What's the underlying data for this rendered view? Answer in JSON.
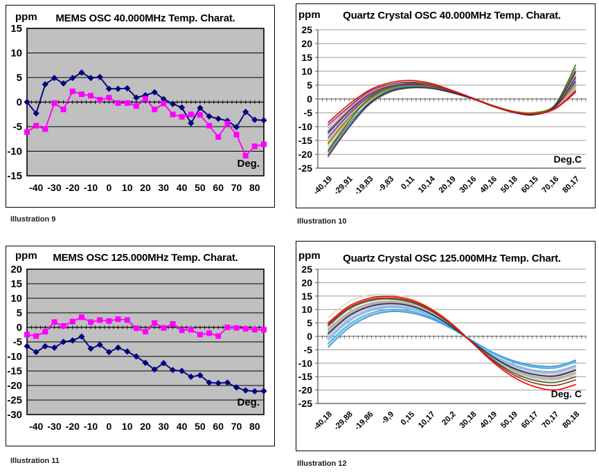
{
  "chart_data": [
    {
      "type": "line",
      "title": "MEMS OSC 40.000MHz Temp. Charat.",
      "y_unit": "ppm",
      "x_unit": "Deg.",
      "caption": "Illustration 9",
      "plot_background": "#C0C0C0",
      "grid": true,
      "ylim": [
        -15,
        15
      ],
      "ystep": 5,
      "x_range": [
        -45,
        85
      ],
      "x_tick_labels": [
        "-40",
        "-30",
        "-20",
        "-10",
        "0",
        "10",
        "20",
        "30",
        "40",
        "50",
        "60",
        "70",
        "80"
      ],
      "series": [
        {
          "marker": "diamond",
          "color": "#000080",
          "x_start": -45,
          "x_step": 5,
          "values": [
            0.0,
            -2.3,
            3.6,
            4.9,
            3.8,
            4.9,
            6.0,
            4.9,
            5.1,
            2.7,
            2.7,
            2.8,
            0.9,
            1.4,
            2.0,
            0.6,
            -0.4,
            -1.1,
            -4.3,
            -1.2,
            -2.9,
            -3.4,
            -3.8,
            -5.1,
            -2.0,
            -3.6,
            -3.7
          ]
        },
        {
          "marker": "square",
          "color": "#FF00FF",
          "x_start": -45,
          "x_step": 5,
          "values": [
            -6.1,
            -4.8,
            -5.5,
            -0.2,
            -1.5,
            2.2,
            1.6,
            1.3,
            0.5,
            0.9,
            -0.2,
            -0.2,
            -0.8,
            0.7,
            -1.5,
            -0.3,
            -2.5,
            -3.0,
            -2.5,
            -2.6,
            -4.8,
            -7.1,
            -4.4,
            -6.6,
            -10.9,
            -9.0,
            -8.6
          ]
        }
      ]
    },
    {
      "type": "line",
      "title": "Quartz Crystal OSC 40.000MHz Temp. Charat.",
      "y_unit": "ppm",
      "x_unit": "Deg.C",
      "caption": "Illustration 10",
      "plot_background": "#FFFFFF",
      "grid": true,
      "ylim": [
        -25,
        25
      ],
      "ystep": 5,
      "x_categories": [
        "-40,19",
        "-29,91",
        "-19,83",
        "-9,83",
        "0,11",
        "10,14",
        "20,19",
        "30,16",
        "40,16",
        "50,18",
        "60,15",
        "70,16",
        "80,17"
      ],
      "curves": [
        {
          "color": "#B9CDE5",
          "values": [
            -13.1,
            -5.0,
            1.2,
            4.3,
            5.2,
            4.6,
            2.6,
            0.1,
            -2.5,
            -4.6,
            -5.1,
            -3.0,
            6.9
          ]
        },
        {
          "color": "#CCC1DA",
          "values": [
            -15.4,
            -6.4,
            0.1,
            3.9,
            4.9,
            4.4,
            2.5,
            0.0,
            -2.4,
            -4.5,
            -4.9,
            -2.8,
            5.4
          ]
        },
        {
          "color": "#DDC9A3",
          "values": [
            -17.4,
            -7.6,
            -0.7,
            3.4,
            4.6,
            4.2,
            2.4,
            0.0,
            -2.4,
            -4.4,
            -4.8,
            -2.6,
            4.4
          ]
        },
        {
          "color": "#E6B9B8",
          "values": [
            -19.9,
            -9.6,
            -1.6,
            2.9,
            4.2,
            3.9,
            2.2,
            0.0,
            -2.5,
            -4.8,
            -5.6,
            -2.7,
            9.3
          ]
        },
        {
          "color": "#FAC090",
          "values": [
            -14.8,
            -6.0,
            0.5,
            4.0,
            5.0,
            4.4,
            2.5,
            0.1,
            -2.5,
            -4.5,
            -5.0,
            -2.8,
            5.9
          ]
        },
        {
          "color": "#A6A6A6",
          "values": [
            -11.4,
            -4.0,
            1.9,
            4.7,
            5.4,
            4.7,
            2.7,
            0.1,
            -2.6,
            -4.7,
            -5.2,
            -3.2,
            3.4
          ]
        },
        {
          "color": "#D99694",
          "values": [
            -21.0,
            -10.6,
            -2.1,
            2.4,
            3.9,
            3.7,
            2.2,
            0.0,
            -2.6,
            -4.8,
            -5.5,
            -2.9,
            8.9
          ]
        },
        {
          "color": "#E5A0BE",
          "values": [
            -10.4,
            -3.4,
            2.2,
            4.9,
            5.7,
            4.9,
            2.8,
            0.2,
            -2.6,
            -4.8,
            -5.3,
            -3.3,
            3.9
          ]
        },
        {
          "color": "#558ED5",
          "values": [
            -12.6,
            -4.7,
            1.4,
            4.5,
            5.3,
            4.6,
            2.6,
            0.1,
            -2.5,
            -4.6,
            -5.1,
            -3.0,
            7.4
          ]
        },
        {
          "color": "#BF9000",
          "values": [
            -16.3,
            -7.1,
            -0.4,
            3.6,
            4.8,
            4.3,
            2.5,
            0.1,
            -2.4,
            -4.5,
            -5.0,
            -2.7,
            4.9
          ]
        },
        {
          "color": "#7030A0",
          "values": [
            -14.0,
            -5.6,
            0.9,
            4.1,
            5.1,
            4.5,
            2.6,
            0.2,
            -2.5,
            -4.6,
            -5.1,
            -2.9,
            6.4
          ]
        },
        {
          "color": "#604A7B",
          "values": [
            -9.4,
            -2.9,
            2.7,
            5.3,
            6.1,
            5.2,
            2.9,
            0.2,
            -2.7,
            -4.8,
            -5.4,
            -3.5,
            2.9
          ]
        },
        {
          "color": "#31849B",
          "values": [
            -19.2,
            -9.1,
            -1.3,
            3.1,
            4.4,
            4.0,
            2.3,
            0.1,
            -2.5,
            -4.7,
            -5.3,
            -2.5,
            5.9
          ]
        },
        {
          "color": "#77933C",
          "values": [
            -15.9,
            -6.9,
            -0.1,
            3.7,
            4.7,
            4.3,
            2.4,
            0.1,
            -2.4,
            -4.5,
            -5.0,
            -2.3,
            10.9
          ]
        },
        {
          "color": "#8B2E2E",
          "values": [
            -12.0,
            -4.4,
            1.7,
            4.6,
            5.5,
            4.7,
            2.7,
            0.2,
            -2.6,
            -4.7,
            -5.3,
            -3.1,
            7.9
          ]
        },
        {
          "color": "#1F3864",
          "values": [
            -20.5,
            -10.2,
            -1.8,
            2.7,
            4.1,
            3.9,
            2.3,
            0.1,
            -2.6,
            -4.9,
            -5.7,
            -2.6,
            9.8
          ]
        },
        {
          "color": "#4E6B22",
          "values": [
            -18.5,
            -8.2,
            0.2,
            4.3,
            5.7,
            5.3,
            3.1,
            0.4,
            -2.4,
            -4.6,
            -5.2,
            -2.1,
            12.2
          ]
        },
        {
          "color": "#FF0000",
          "values": [
            -8.5,
            -2.0,
            3.2,
            5.9,
            6.7,
            5.6,
            3.1,
            0.3,
            -2.6,
            -4.7,
            -5.4,
            -3.6,
            2.4
          ]
        }
      ]
    },
    {
      "type": "line",
      "title": "MEMS OSC 125.000MHz Temp. Charat.",
      "y_unit": "ppm",
      "x_unit": "Deg.",
      "caption": "Illustration 11",
      "plot_background": "#C0C0C0",
      "grid": true,
      "ylim": [
        -30,
        20
      ],
      "ystep": 5,
      "x_range": [
        -45,
        85
      ],
      "x_tick_labels": [
        "-40",
        "-30",
        "-20",
        "-10",
        "0",
        "10",
        "20",
        "30",
        "40",
        "50",
        "60",
        "70",
        "80"
      ],
      "series": [
        {
          "marker": "square",
          "color": "#FF00FF",
          "x_start": -45,
          "x_step": 5,
          "values": [
            -2.5,
            -3.0,
            -1.5,
            1.8,
            0.5,
            2.0,
            3.5,
            1.8,
            2.5,
            2.2,
            2.8,
            2.5,
            -0.3,
            -1.5,
            1.5,
            -0.2,
            1.2,
            -1.0,
            -0.8,
            -2.5,
            -2.0,
            -3.0,
            0.0,
            -0.2,
            -0.5,
            -0.8,
            -0.8
          ]
        },
        {
          "marker": "diamond",
          "color": "#000080",
          "x_start": -45,
          "x_step": 5,
          "values": [
            -6.5,
            -8.5,
            -6.5,
            -7.0,
            -5.0,
            -4.5,
            -3.2,
            -7.3,
            -6.0,
            -8.5,
            -7.0,
            -8.3,
            -10.0,
            -12.2,
            -14.5,
            -12.3,
            -14.7,
            -15.0,
            -17.0,
            -16.5,
            -19.0,
            -19.2,
            -19.0,
            -20.7,
            -21.7,
            -22.0,
            -21.9
          ]
        }
      ]
    },
    {
      "type": "line",
      "title": "Quartz Crystal OSC 125.000MHz Temp. Chart.",
      "y_unit": "ppm",
      "x_unit": "Deg. C",
      "caption": "Illustration 12",
      "plot_background": "#FFFFFF",
      "grid": true,
      "ylim": [
        -25,
        25
      ],
      "ystep": 5,
      "x_categories": [
        "-40,18",
        "-29,88",
        "-19,86",
        "-9,9",
        "0,15",
        "10,17",
        "20,2",
        "30,18",
        "40,19",
        "50,19",
        "60,17",
        "70,17",
        "80,18"
      ],
      "curves": [
        {
          "color": "#D7E4BC",
          "values": [
            7.0,
            12.8,
            15.4,
            15.6,
            14.1,
            10.5,
            5.0,
            -2.0,
            -8.3,
            -13.2,
            -16.0,
            -16.9,
            -14.8
          ]
        },
        {
          "color": "#B9CDE5",
          "values": [
            0.1,
            6.6,
            10.3,
            11.5,
            10.7,
            7.9,
            3.4,
            -2.0,
            -7.3,
            -11.2,
            -13.4,
            -13.9,
            -11.7
          ]
        },
        {
          "color": "#CCC1DA",
          "values": [
            0.6,
            7.1,
            10.7,
            11.9,
            11.0,
            8.1,
            3.4,
            -1.9,
            -7.2,
            -11.0,
            -13.1,
            -13.6,
            -11.4
          ]
        },
        {
          "color": "#DDC9A3",
          "values": [
            2.0,
            8.3,
            11.7,
            12.7,
            11.8,
            8.7,
            3.8,
            -2.1,
            -7.9,
            -12.2,
            -14.6,
            -15.2,
            -13.1
          ]
        },
        {
          "color": "#D99694",
          "values": [
            1.4,
            7.9,
            11.3,
            12.4,
            11.5,
            8.5,
            3.6,
            -2.0,
            -7.6,
            -11.7,
            -14.0,
            -14.5,
            -12.3
          ]
        },
        {
          "color": "#95B3D7",
          "values": [
            -1.5,
            5.5,
            9.4,
            10.8,
            10.1,
            7.5,
            3.2,
            -1.8,
            -6.9,
            -10.5,
            -12.6,
            -13.0,
            -10.8
          ]
        },
        {
          "color": "#92CDDC",
          "values": [
            -3.3,
            3.8,
            8.0,
            9.6,
            9.0,
            6.8,
            2.9,
            -1.6,
            -6.1,
            -9.4,
            -11.1,
            -11.4,
            -9.2
          ]
        },
        {
          "color": "#A6A6A6",
          "values": [
            2.5,
            8.7,
            12.0,
            12.9,
            12.0,
            8.8,
            3.9,
            -2.1,
            -8.1,
            -12.5,
            -15.0,
            -15.7,
            -13.6
          ]
        },
        {
          "color": "#8EB4E3",
          "values": [
            -0.7,
            6.0,
            9.8,
            11.1,
            10.4,
            7.7,
            3.3,
            -1.9,
            -7.1,
            -10.8,
            -12.9,
            -13.3,
            -11.1
          ]
        },
        {
          "color": "#BFBFBF",
          "values": [
            3.0,
            9.1,
            12.4,
            13.2,
            12.2,
            9.0,
            4.0,
            -2.2,
            -8.4,
            -12.9,
            -15.5,
            -16.2,
            -14.1
          ]
        },
        {
          "color": "#558ED5",
          "values": [
            -4.1,
            3.1,
            7.5,
            9.2,
            8.7,
            6.5,
            2.8,
            -1.6,
            -6.0,
            -9.1,
            -10.8,
            -11.1,
            -8.9
          ]
        },
        {
          "color": "#31B6E7",
          "values": [
            -2.6,
            4.4,
            8.5,
            10.0,
            9.4,
            7.0,
            3.0,
            -1.7,
            -6.3,
            -9.7,
            -11.5,
            -11.8,
            -9.6
          ]
        },
        {
          "color": "#17375E",
          "values": [
            1.0,
            7.6,
            11.1,
            12.2,
            11.3,
            8.3,
            3.5,
            -2.1,
            -7.7,
            -11.9,
            -14.2,
            -14.8,
            -12.6
          ]
        },
        {
          "color": "#4F6228",
          "values": [
            3.9,
            10.1,
            13.2,
            13.9,
            12.7,
            9.4,
            4.1,
            -2.3,
            -8.7,
            -13.6,
            -16.4,
            -17.2,
            -15.1
          ]
        },
        {
          "color": "#943634",
          "values": [
            4.4,
            10.6,
            13.6,
            14.3,
            13.1,
            9.7,
            4.3,
            -2.4,
            -9.1,
            -14.3,
            -17.4,
            -18.3,
            -16.2
          ]
        },
        {
          "color": "#FF0000",
          "values": [
            5.0,
            11.2,
            14.2,
            14.9,
            13.6,
            10.1,
            4.6,
            -2.5,
            -9.6,
            -15.2,
            -18.7,
            -20.0,
            -18.0
          ]
        }
      ]
    }
  ]
}
